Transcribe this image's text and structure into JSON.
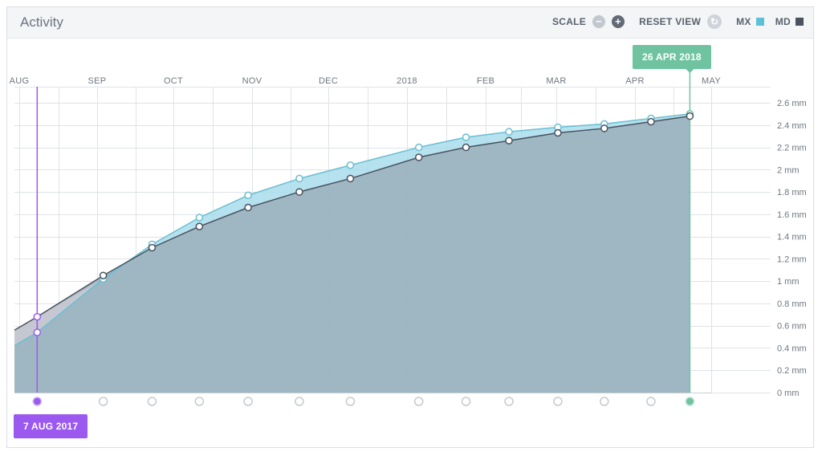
{
  "header": {
    "title": "Activity",
    "scale_label": "SCALE",
    "scale_minus": "−",
    "scale_plus": "+",
    "reset_label": "RESET VIEW",
    "reset_icon": "↻",
    "legend": [
      {
        "label": "MX",
        "color": "#5ec0d8"
      },
      {
        "label": "MD",
        "color": "#4a5260"
      }
    ]
  },
  "range": {
    "end_label": "26 APR 2018",
    "start_label": "7 AUG 2017",
    "end_color": "#6fc3a1",
    "start_color": "#9b59f0"
  },
  "colors": {
    "mx_line": "#6abfd2",
    "mx_fill": "#a9dceb",
    "md_line": "#4a5260",
    "md_fill": "#9aafbb",
    "grid": "#dfe3e7"
  },
  "chart_data": {
    "type": "area",
    "x_ticks": [
      {
        "label": "AUG",
        "month": 0
      },
      {
        "label": "SEP",
        "month": 1
      },
      {
        "label": "OCT",
        "month": 2
      },
      {
        "label": "NOV",
        "month": 3
      },
      {
        "label": "DEC",
        "month": 4
      },
      {
        "label": "2018",
        "month": 5
      },
      {
        "label": "FEB",
        "month": 6
      },
      {
        "label": "MAR",
        "month": 7
      },
      {
        "label": "APR",
        "month": 8
      },
      {
        "label": "MAY",
        "month": 9
      }
    ],
    "y_ticks": [
      "0 mm",
      "0.2 mm",
      "0.4 mm",
      "0.6 mm",
      "0.8 mm",
      "1 mm",
      "1.2 mm",
      "1.4 mm",
      "1.6 mm",
      "1.8 mm",
      "2 mm",
      "2.2 mm",
      "2.4 mm",
      "2.6 mm"
    ],
    "ylim": [
      0,
      2.6
    ],
    "x": [
      0.23,
      1.08,
      1.72,
      2.33,
      2.95,
      3.62,
      4.28,
      5.15,
      5.75,
      6.33,
      7.02,
      7.61,
      8.21,
      8.72
    ],
    "series": [
      {
        "name": "MX",
        "values": [
          0.54,
          1.02,
          1.33,
          1.57,
          1.77,
          1.92,
          2.04,
          2.2,
          2.29,
          2.34,
          2.38,
          2.41,
          2.46,
          2.5
        ],
        "start": 0.42
      },
      {
        "name": "MD",
        "values": [
          0.68,
          1.05,
          1.3,
          1.49,
          1.66,
          1.8,
          1.92,
          2.11,
          2.2,
          2.26,
          2.33,
          2.37,
          2.43,
          2.48
        ],
        "start": 0.56
      }
    ]
  }
}
